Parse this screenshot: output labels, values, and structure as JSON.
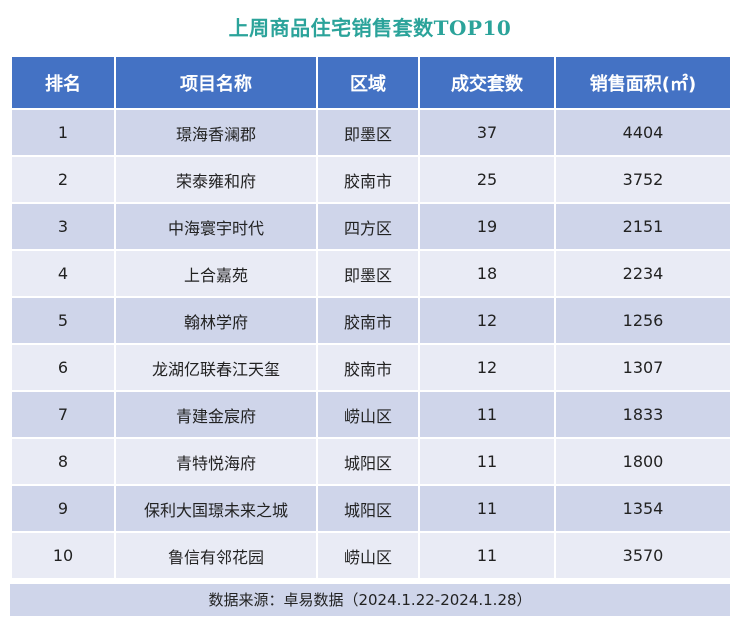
{
  "chart_data": {
    "type": "table",
    "title": "上周商品住宅销售套数TOP10",
    "columns": [
      "排名",
      "项目名称",
      "区域",
      "成交套数",
      "销售面积(㎡)"
    ],
    "rows": [
      [
        "1",
        "璟海香澜郡",
        "即墨区",
        "37",
        "4404"
      ],
      [
        "2",
        "荣泰雍和府",
        "胶南市",
        "25",
        "3752"
      ],
      [
        "3",
        "中海寰宇时代",
        "四方区",
        "19",
        "2151"
      ],
      [
        "4",
        "上合嘉苑",
        "即墨区",
        "18",
        "2234"
      ],
      [
        "5",
        "翰林学府",
        "胶南市",
        "12",
        "1256"
      ],
      [
        "6",
        "龙湖亿联春江天玺",
        "胶南市",
        "12",
        "1307"
      ],
      [
        "7",
        "青建金宸府",
        "崂山区",
        "11",
        "1833"
      ],
      [
        "8",
        "青特悦海府",
        "城阳区",
        "11",
        "1800"
      ],
      [
        "9",
        "保利大国璟未来之城",
        "城阳区",
        "11",
        "1354"
      ],
      [
        "10",
        "鲁信有邻花园",
        "崂山区",
        "11",
        "3570"
      ]
    ],
    "source": "数据来源：卓易数据（2024.1.22-2024.1.28）"
  },
  "colors": {
    "title": "#2ba39a",
    "header_bg": "#4472c4",
    "row_dark": "#cfd5ea",
    "row_light": "#e9ebf5"
  }
}
